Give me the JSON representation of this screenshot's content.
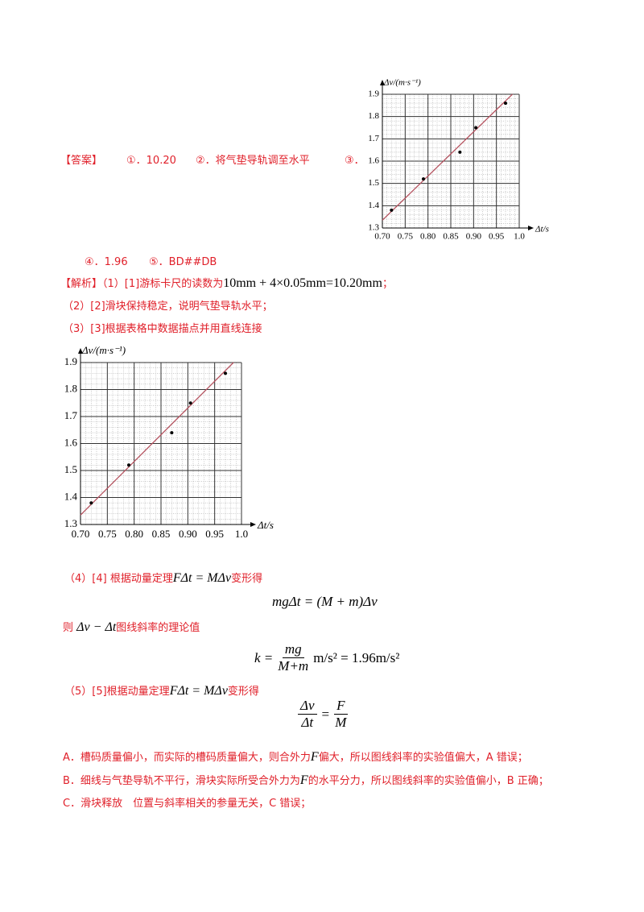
{
  "answer": {
    "label": "【答案】",
    "items": [
      "①．10.20",
      "②．将气垫导轨调至水平",
      "③．",
      "④．1.96",
      "⑤．BD##DB"
    ]
  },
  "analysis": {
    "label": "【解析】",
    "p1": [
      "（1）[1]游标卡尺的读数为",
      "10mm + 4×0.05mm=10.20mm",
      "；"
    ],
    "p2": "（2）[2]滑块保持稳定，说明气垫导轨水平；",
    "p3": "（3）[3]根据表格中数据描点并用直线连接",
    "p4": [
      "（4）[4] 根据动量定理",
      "FΔt = MΔv",
      "变形得"
    ],
    "eq1": "mgΔt = (M + m)Δv",
    "p5": [
      "则",
      "Δv − Δt",
      "图线斜率的理论值"
    ],
    "eq2": {
      "lhs": "k =",
      "numerator": "mg",
      "denominator": "M+m",
      "rhs": "m/s² = 1.96m/s²"
    },
    "p6": [
      "（5）[5]根据动量定理",
      "FΔt = MΔv",
      "变形得"
    ],
    "eq3": {
      "left_numerator": "Δv",
      "left_denominator": "Δt",
      "equals": "=",
      "right_numerator": "F",
      "right_denominator": "M"
    },
    "pA": [
      "A．槽码质量偏小，而实际的槽码质量偏大，则合外力",
      "F",
      "偏大，所以图线斜率的实验值偏大，A 错误；"
    ],
    "pB": [
      "B．细线与气垫导轨不平行，滑块实际所受合外力为",
      "F",
      "的水平分力，所以图线斜率的实验值偏小，B 正确；"
    ],
    "pC": "C．滑块释放　位置与斜率相关的参量无关，C 错误；"
  },
  "chart_data": [
    {
      "type": "scatter",
      "x_label": "Δt/s",
      "y_label": "Δv/(m·s⁻¹)",
      "x": [
        0.72,
        0.79,
        0.87,
        0.905,
        0.97
      ],
      "values": [
        1.38,
        1.52,
        1.64,
        1.75,
        1.86
      ],
      "color": "#000000",
      "fit_line": {
        "x": [
          0.7,
          0.985
        ],
        "values": [
          1.335,
          1.9
        ],
        "color": "#b5525f"
      },
      "xlim": [
        0.7,
        1.0
      ],
      "ylim": [
        1.3,
        1.9
      ],
      "xticks": [
        {
          "value": 0.7,
          "label": "0.70"
        },
        0.75,
        {
          "value": 0.8,
          "label": "0.80"
        },
        0.85,
        {
          "value": 0.9,
          "label": "0.90"
        },
        0.95,
        {
          "value": 1.0,
          "label": "1.0"
        }
      ],
      "yticks": [
        1.3,
        1.4,
        1.5,
        1.6,
        1.7,
        1.8,
        1.9
      ],
      "grid": true
    },
    {
      "type": "scatter",
      "x_label": "Δt/s",
      "y_label": "Δv/(m·s⁻¹)",
      "x": [
        0.72,
        0.79,
        0.87,
        0.905,
        0.97
      ],
      "values": [
        1.38,
        1.52,
        1.64,
        1.75,
        1.86
      ],
      "color": "#000000",
      "fit_line": {
        "x": [
          0.7,
          0.985
        ],
        "values": [
          1.335,
          1.9
        ],
        "color": "#b5525f"
      },
      "xlim": [
        0.7,
        1.0
      ],
      "ylim": [
        1.3,
        1.9
      ],
      "xticks": [
        {
          "value": 0.7,
          "label": "0.70"
        },
        0.75,
        {
          "value": 0.8,
          "label": "0.80"
        },
        0.85,
        {
          "value": 0.9,
          "label": "0.90"
        },
        0.95,
        {
          "value": 1.0,
          "label": "1.0"
        }
      ],
      "yticks": [
        1.3,
        1.4,
        1.5,
        1.6,
        1.7,
        1.8,
        1.9
      ],
      "grid": true
    }
  ]
}
